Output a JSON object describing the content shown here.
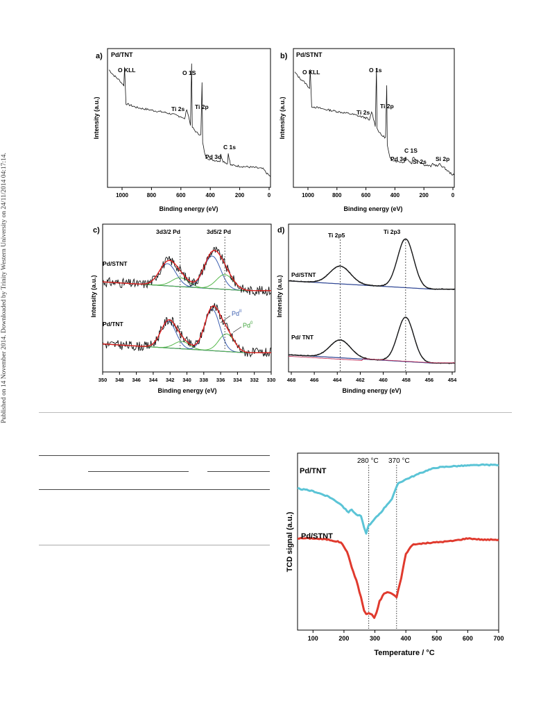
{
  "side_note": "Published on 14 November 2014. Downloaded by Trinity Western University on 24/11/2014 04:17:14.",
  "panels": {
    "a": {
      "letter": "a)",
      "sample": "Pd/TNT",
      "xlabel": "Binding energy (eV)",
      "ylabel": "Intensity (a.u.)",
      "xticks": [
        "1000",
        "800",
        "600",
        "400",
        "200",
        "0"
      ],
      "peaks": [
        "O KLL",
        "O 1S",
        "Ti 2s",
        "Ti 2p",
        "Pd 3d",
        "C 1s"
      ]
    },
    "b": {
      "letter": "b)",
      "sample": "Pd/STNT",
      "xlabel": "Binding energy (eV)",
      "ylabel": "Intensity (a.u.)",
      "xticks": [
        "1000",
        "800",
        "600",
        "400",
        "200",
        "0"
      ],
      "peaks": [
        "O KLL",
        "O 1s",
        "Ti 2s",
        "Ti 2p",
        "C 1S",
        "Pd 3d",
        "Si 2s",
        "Si 2p"
      ]
    },
    "c": {
      "letter": "c)",
      "samples": [
        "Pd/STNT",
        "Pd/TNT"
      ],
      "xlabel": "Binding energy (eV)",
      "ylabel": "Intensity (a.u.)",
      "xticks": [
        "350",
        "348",
        "346",
        "344",
        "342",
        "340",
        "338",
        "336",
        "334",
        "332",
        "330"
      ],
      "peaks": [
        "3d3/2 Pd",
        "3d5/2 Pd"
      ],
      "legend_pd2": "Pd",
      "legend_pd2_sup": "II",
      "legend_pd0": "Pd",
      "legend_pd0_sup": "0"
    },
    "d": {
      "letter": "d)",
      "samples": [
        "Pd/STNT",
        "Pd/ TNT"
      ],
      "xlabel": "Binding energy (eV)",
      "ylabel": "Intensity (a.u.)",
      "xticks": [
        "468",
        "466",
        "464",
        "462",
        "460",
        "458",
        "456",
        "454"
      ],
      "peaks": [
        "Ti 2p5",
        "Ti 2p3"
      ]
    },
    "tpr": {
      "xlabel": "Temperature / °C",
      "ylabel": "TCD signal (a.u.)",
      "xticks": [
        "100",
        "200",
        "300",
        "400",
        "500",
        "600",
        "700"
      ],
      "samples": [
        "Pd/TNT",
        "Pd/STNT"
      ],
      "markers": [
        "280 °C",
        "370 °C"
      ]
    }
  },
  "colors": {
    "tnt_line": "#5bc4d6",
    "stnt_line": "#e03a2e",
    "pd2": "#3a5db0",
    "pd0": "#55b84a",
    "fit": "#e02020"
  },
  "chart_data": [
    {
      "type": "line",
      "title": "",
      "panel": "a",
      "xlabel": "Binding energy (eV)",
      "ylabel": "Intensity (a.u.)",
      "xlim": [
        1100,
        0
      ],
      "x_reversed": true,
      "series": [
        {
          "name": "Pd/TNT",
          "x": [
            1090,
            1060,
            1020,
            990,
            985,
            975,
            900,
            800,
            700,
            600,
            580,
            565,
            540,
            532,
            528,
            500,
            470,
            462,
            458,
            440,
            420,
            400,
            340,
            336,
            320,
            290,
            285,
            270,
            200,
            100,
            50,
            20,
            0
          ],
          "y": [
            88,
            84,
            80,
            76,
            90,
            62,
            59,
            57,
            55,
            52,
            50,
            58,
            46,
            92,
            44,
            40,
            38,
            78,
            32,
            22,
            20,
            19,
            18,
            23,
            18,
            16,
            24,
            15,
            14,
            13,
            12,
            8,
            6
          ]
        }
      ]
    },
    {
      "type": "line",
      "title": "",
      "panel": "b",
      "xlabel": "Binding energy (eV)",
      "ylabel": "Intensity (a.u.)",
      "xlim": [
        1100,
        0
      ],
      "x_reversed": true,
      "series": [
        {
          "name": "Pd/STNT",
          "x": [
            1090,
            1060,
            1020,
            990,
            985,
            975,
            900,
            800,
            700,
            600,
            580,
            565,
            540,
            532,
            528,
            500,
            470,
            462,
            458,
            440,
            400,
            340,
            336,
            290,
            285,
            200,
            155,
            150,
            110,
            105,
            60,
            30,
            0
          ],
          "y": [
            86,
            82,
            78,
            74,
            88,
            60,
            58,
            56,
            54,
            51,
            49,
            56,
            45,
            90,
            43,
            38,
            36,
            76,
            30,
            20,
            18,
            17,
            21,
            16,
            21,
            15,
            14,
            16,
            14,
            16,
            12,
            9,
            7
          ]
        }
      ]
    },
    {
      "type": "line",
      "title": "",
      "panel": "c",
      "xlabel": "Binding energy (eV)",
      "ylabel": "Intensity (a.u.)",
      "xlim": [
        350,
        330
      ],
      "x_reversed": true,
      "peak_positions": {
        "3d3/2 Pd": 340.8,
        "3d5/2 Pd": 335.5
      },
      "series": [
        {
          "name": "Pd/STNT",
          "x": [
            350,
            346,
            344,
            342,
            340,
            338.5,
            337,
            335.5,
            334,
            332,
            330
          ],
          "y": [
            58,
            60,
            68,
            76,
            69,
            74,
            86,
            72,
            62,
            57,
            54
          ]
        },
        {
          "name": "Pd/TNT",
          "x": [
            350,
            346,
            344,
            342,
            340,
            338.5,
            337,
            335.5,
            334,
            332,
            330
          ],
          "y": [
            23,
            24,
            32,
            42,
            27,
            30,
            48,
            27,
            18,
            14,
            13
          ]
        }
      ]
    },
    {
      "type": "line",
      "title": "",
      "panel": "d",
      "xlabel": "Binding energy (eV)",
      "ylabel": "Intensity (a.u.)",
      "xlim": [
        468.5,
        454
      ],
      "x_reversed": true,
      "peak_positions": {
        "Ti 2p5": 464.0,
        "Ti 2p3": 458.3
      },
      "series": [
        {
          "name": "Pd/STNT",
          "x": [
            468.5,
            466,
            464,
            462,
            461,
            460,
            459,
            458.3,
            457.5,
            456,
            454
          ],
          "y": [
            60,
            62,
            72,
            61,
            60,
            63,
            80,
            92,
            72,
            60,
            59
          ]
        },
        {
          "name": "Pd/ TNT",
          "x": [
            468.5,
            466,
            464,
            462,
            461,
            460,
            459,
            458.3,
            457.5,
            456,
            454
          ],
          "y": [
            16,
            18,
            28,
            17,
            15,
            16,
            32,
            42,
            24,
            14,
            13
          ]
        }
      ]
    },
    {
      "type": "line",
      "title": "",
      "panel": "tpr",
      "xlabel": "Temperature / °C",
      "ylabel": "TCD signal (a.u.)",
      "xlim": [
        50,
        700
      ],
      "vlines": [
        280,
        370
      ],
      "series": [
        {
          "name": "Pd/TNT",
          "x": [
            50,
            100,
            150,
            190,
            205,
            215,
            225,
            240,
            255,
            265,
            272,
            280,
            290,
            300,
            320,
            340,
            355,
            365,
            375,
            400,
            430,
            470,
            500,
            550,
            600,
            650,
            700
          ],
          "y": [
            78,
            76,
            72,
            66,
            62,
            60,
            62,
            58,
            57,
            48,
            44,
            50,
            52,
            55,
            60,
            66,
            70,
            76,
            82,
            85,
            88,
            92,
            94,
            95,
            95.5,
            96,
            96
          ]
        },
        {
          "name": "Pd/STNT",
          "x": [
            50,
            100,
            150,
            190,
            210,
            225,
            240,
            255,
            265,
            272,
            280,
            290,
            298,
            305,
            315,
            330,
            345,
            360,
            370,
            385,
            400,
            420,
            450,
            500,
            550,
            600,
            650,
            700
          ],
          "y": [
            40,
            40,
            39,
            37,
            30,
            18,
            8,
            -5,
            -15,
            -18,
            -17,
            -18,
            -21,
            -17,
            -8,
            -2,
            -1,
            -3,
            -5,
            10,
            28,
            35,
            36,
            37,
            38,
            40,
            39,
            39
          ]
        }
      ]
    }
  ]
}
